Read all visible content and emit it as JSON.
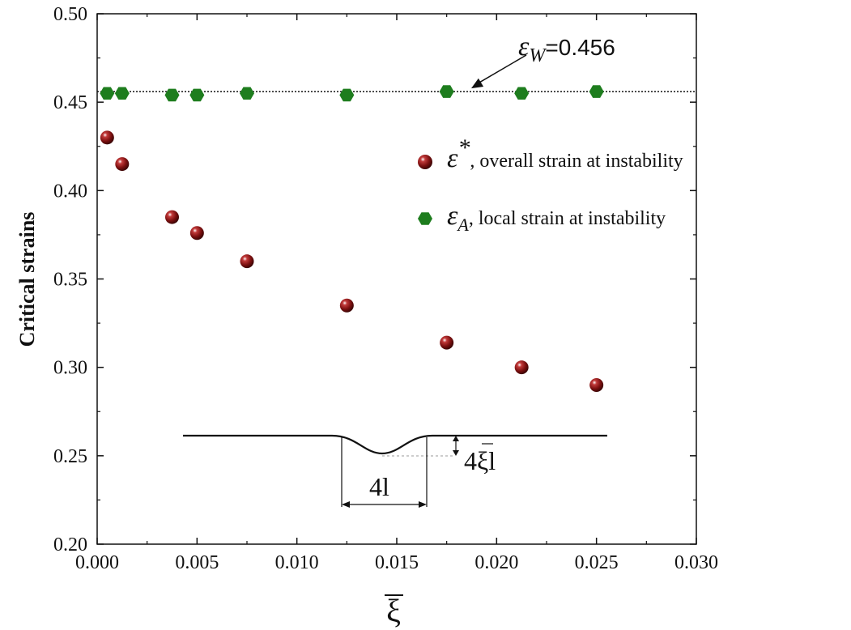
{
  "chart_data": {
    "type": "scatter",
    "ylabel": "Critical strains",
    "xlabel": "ξ",
    "xlim": [
      0.0,
      0.03
    ],
    "ylim": [
      0.2,
      0.5
    ],
    "x_ticks": [
      "0.000",
      "0.005",
      "0.010",
      "0.015",
      "0.020",
      "0.025",
      "0.030"
    ],
    "y_ticks": [
      "0.20",
      "0.25",
      "0.30",
      "0.35",
      "0.40",
      "0.45",
      "0.50"
    ],
    "grid": false,
    "legend_position": "right",
    "series": [
      {
        "name": "ε*, overall strain at instability",
        "symbol": "ε",
        "superscript": "*",
        "description": ", overall strain at instability",
        "marker": "sphere",
        "color": "#7a0f0f",
        "x": [
          0.0005,
          0.00125,
          0.00375,
          0.005,
          0.0075,
          0.0125,
          0.0175,
          0.02125,
          0.025
        ],
        "y": [
          0.43,
          0.415,
          0.385,
          0.376,
          0.36,
          0.335,
          0.314,
          0.3,
          0.29
        ]
      },
      {
        "name": "εA, local strain at instability",
        "symbol": "ε",
        "subscript": "A",
        "description": ", local strain at instability",
        "marker": "hexagon",
        "color": "#1e7d1e",
        "x": [
          0.0005,
          0.00125,
          0.00375,
          0.005,
          0.0075,
          0.0125,
          0.0175,
          0.02125,
          0.025
        ],
        "y": [
          0.455,
          0.455,
          0.454,
          0.454,
          0.455,
          0.454,
          0.456,
          0.455,
          0.456
        ]
      }
    ],
    "reference_line": {
      "y": 0.456,
      "style": "dotted",
      "symbol": "ε",
      "subscript": "W",
      "value_text": "=0.456"
    },
    "inset": {
      "label_depth": "4ξl",
      "label_width": "4l"
    }
  }
}
